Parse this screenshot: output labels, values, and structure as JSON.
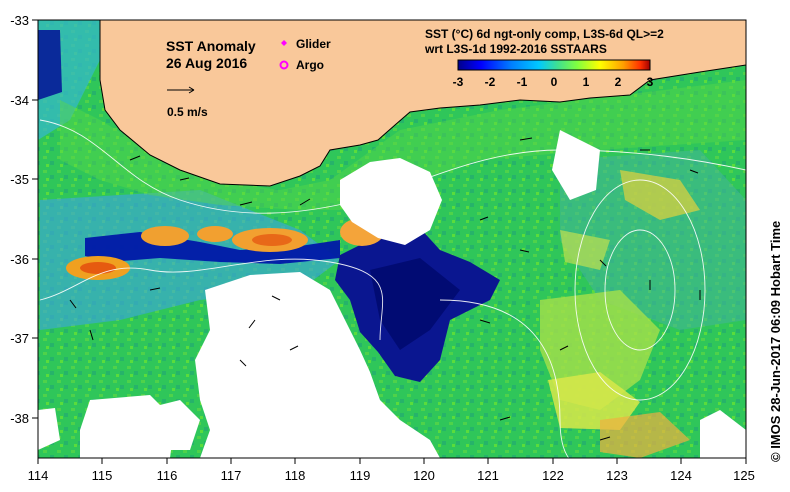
{
  "map": {
    "title": "SST Anomaly",
    "date": "26 Aug 2016",
    "scale_label": "0.5 m/s",
    "legend": [
      {
        "label": "Glider",
        "color": "#ff00ff",
        "symbol": "diamond"
      },
      {
        "label": "Argo",
        "color": "#ff00ff",
        "symbol": "ring"
      }
    ],
    "colorbar": {
      "title_line1": "SST (°C) 6d ngt-only comp, L3S-6d QL>=2",
      "title_line2": "wrt L3S-1d 1992-2016 SSTAARS",
      "ticks": [
        "-3",
        "-2",
        "-1",
        "0",
        "1",
        "2",
        "3"
      ],
      "colors": [
        "#00008b",
        "#0000ff",
        "#0080ff",
        "#00c0ff",
        "#40e0a0",
        "#80ff40",
        "#ffff00",
        "#ffa000",
        "#ff4000",
        "#a00000"
      ]
    },
    "credit": "© IMOS 28-Jun-2017 06:09 Hobart Time",
    "x_ticks": [
      "114",
      "115",
      "116",
      "117",
      "118",
      "119",
      "120",
      "121",
      "122",
      "123",
      "124",
      "125"
    ],
    "y_ticks": [
      "-33",
      "-34",
      "-35",
      "-36",
      "-37",
      "-38"
    ],
    "colors": {
      "land": "#f9c89a",
      "no_data": "#ffffff",
      "ocean_green": "#2fc65a"
    }
  }
}
